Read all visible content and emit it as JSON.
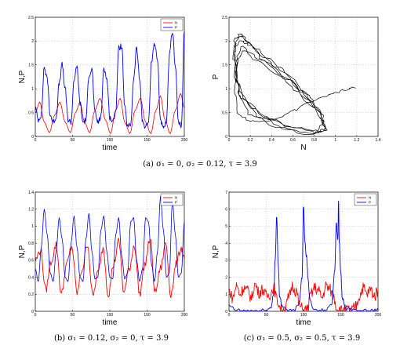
{
  "chart_data": [
    {
      "type": "line",
      "panel": "a-left",
      "xlabel": "time",
      "ylabel": "N,P",
      "xlim": [
        0,
        200
      ],
      "ylim": [
        0,
        2.5
      ],
      "xticks": [
        "0",
        "50",
        "100",
        "150",
        "200"
      ],
      "yticks": [
        "0",
        "0.5",
        "1",
        "1.5",
        "2",
        "2.5"
      ],
      "grid": true,
      "legend": "top-right",
      "series": [
        {
          "name": "N",
          "color": "#ff0000",
          "noise": 0,
          "x": [
            0,
            6,
            12,
            19,
            26,
            33,
            40,
            47,
            54,
            60,
            66,
            73,
            80,
            87,
            94,
            101,
            108,
            114,
            120,
            127,
            134,
            141,
            148,
            155,
            162,
            168,
            174,
            181,
            188,
            195,
            200
          ],
          "y": [
            0.5,
            0.72,
            0.3,
            0.08,
            0.45,
            0.72,
            0.3,
            0.08,
            0.5,
            0.72,
            0.3,
            0.08,
            0.55,
            0.8,
            0.35,
            0.06,
            0.55,
            0.8,
            0.3,
            0.06,
            0.55,
            0.8,
            0.3,
            0.06,
            0.55,
            0.85,
            0.35,
            0.06,
            0.55,
            0.9,
            0.6
          ]
        },
        {
          "name": "P",
          "color": "#0000ff",
          "noise": 0.06,
          "x": [
            0,
            4,
            8,
            12,
            16,
            20,
            24,
            28,
            32,
            36,
            40,
            44,
            48,
            52,
            56,
            60,
            64,
            68,
            72,
            76,
            80,
            84,
            88,
            92,
            96,
            100,
            104,
            108,
            112,
            116,
            120,
            124,
            128,
            132,
            136,
            140,
            144,
            148,
            152,
            156,
            160,
            164,
            168,
            172,
            176,
            180,
            184,
            188,
            192,
            196,
            200
          ],
          "y": [
            0.6,
            0.35,
            0.45,
            1.45,
            1.2,
            0.45,
            0.3,
            0.4,
            1.1,
            1.5,
            1.0,
            0.35,
            0.3,
            1.2,
            1.45,
            0.7,
            0.3,
            0.35,
            1.3,
            1.4,
            0.5,
            0.3,
            0.4,
            1.45,
            1.2,
            0.4,
            0.3,
            0.55,
            1.85,
            1.9,
            0.6,
            0.2,
            0.25,
            1.2,
            1.85,
            1.2,
            0.3,
            0.2,
            0.3,
            1.6,
            1.95,
            1.6,
            0.35,
            0.15,
            0.3,
            1.7,
            2.2,
            1.5,
            0.3,
            0.2,
            2.2
          ]
        }
      ]
    },
    {
      "type": "line",
      "panel": "a-right",
      "xlabel": "N",
      "ylabel": "P",
      "xlim": [
        0,
        1.4
      ],
      "ylim": [
        0,
        2.5
      ],
      "xticks": [
        "0",
        "0.2",
        "0.4",
        "0.6",
        "0.8",
        "1",
        "1.2",
        "1.4"
      ],
      "yticks": [
        "0",
        "0.5",
        "1",
        "1.5",
        "2",
        "2.5"
      ],
      "grid": true,
      "series": [
        {
          "name": "",
          "color": "#000000",
          "noise": 0.02,
          "x": [
            1.18,
            1.1,
            1.0,
            0.9,
            0.8,
            0.7,
            0.62,
            0.5,
            0.35,
            0.2,
            0.1,
            0.05,
            0.07,
            0.12,
            0.25,
            0.45,
            0.65,
            0.82,
            0.9,
            0.82,
            0.6,
            0.4,
            0.22,
            0.1,
            0.05,
            0.06,
            0.1,
            0.2,
            0.35,
            0.55,
            0.75,
            0.88,
            0.92,
            0.85,
            0.6,
            0.35,
            0.18,
            0.08,
            0.04,
            0.06,
            0.12,
            0.25,
            0.45,
            0.7,
            0.85,
            0.9,
            0.8,
            0.55,
            0.3,
            0.12,
            0.05,
            0.05,
            0.1,
            0.18,
            0.35,
            0.55,
            0.75,
            0.88,
            0.9,
            0.75,
            0.45,
            0.2,
            0.1,
            0.06,
            0.08,
            0.15,
            0.3,
            0.55,
            0.8
          ],
          "y": [
            1.03,
            0.98,
            0.92,
            0.85,
            0.75,
            0.68,
            0.55,
            0.42,
            0.32,
            0.32,
            0.45,
            0.9,
            1.6,
            1.9,
            1.6,
            1.3,
            0.95,
            0.6,
            0.3,
            0.12,
            0.18,
            0.35,
            0.6,
            0.95,
            1.45,
            1.95,
            2.15,
            1.9,
            1.55,
            1.2,
            0.75,
            0.35,
            0.12,
            0.08,
            0.2,
            0.4,
            0.7,
            1.1,
            1.6,
            2.05,
            2.1,
            1.85,
            1.45,
            0.95,
            0.5,
            0.15,
            0.06,
            0.15,
            0.4,
            0.8,
            1.25,
            1.75,
            2.0,
            1.95,
            1.65,
            1.3,
            0.85,
            0.45,
            0.12,
            0.05,
            0.2,
            0.45,
            0.85,
            1.3,
            1.65,
            1.8,
            1.6,
            1.2,
            0.6
          ]
        }
      ]
    },
    {
      "type": "line",
      "panel": "b",
      "xlabel": "time",
      "ylabel": "N,P",
      "xlim": [
        0,
        200
      ],
      "ylim": [
        0,
        1.4
      ],
      "xticks": [
        "0",
        "50",
        "100",
        "150",
        "200"
      ],
      "yticks": [
        "0",
        "0.2",
        "0.4",
        "0.6",
        "0.8",
        "1",
        "1.2",
        "1.4"
      ],
      "grid": true,
      "legend": "top-right",
      "series": [
        {
          "name": "N",
          "color": "#ff0000",
          "noise": 0.05,
          "x": [
            0,
            7,
            14,
            21,
            28,
            35,
            42,
            49,
            56,
            63,
            70,
            77,
            84,
            91,
            98,
            105,
            112,
            119,
            126,
            133,
            140,
            147,
            154,
            161,
            168,
            175,
            182,
            189,
            196,
            200
          ],
          "y": [
            0.6,
            0.72,
            0.25,
            0.58,
            0.78,
            0.2,
            0.55,
            0.76,
            0.22,
            0.5,
            0.8,
            0.18,
            0.45,
            0.75,
            0.2,
            0.55,
            0.82,
            0.22,
            0.5,
            0.78,
            0.2,
            0.55,
            0.85,
            0.22,
            0.5,
            0.8,
            0.2,
            0.55,
            0.75,
            0.62
          ]
        },
        {
          "name": "P",
          "color": "#0000ff",
          "noise": 0,
          "x": [
            0,
            4,
            8,
            12,
            16,
            20,
            24,
            28,
            32,
            36,
            40,
            44,
            48,
            52,
            56,
            60,
            64,
            68,
            72,
            76,
            80,
            84,
            88,
            92,
            96,
            100,
            104,
            108,
            112,
            116,
            120,
            124,
            128,
            132,
            136,
            140,
            144,
            148,
            152,
            156,
            160,
            164,
            168,
            172,
            176,
            180,
            184,
            188,
            192,
            196,
            200
          ],
          "y": [
            0.5,
            0.35,
            0.75,
            1.2,
            0.9,
            0.45,
            0.35,
            0.7,
            1.1,
            0.85,
            0.4,
            0.35,
            0.8,
            1.12,
            0.75,
            0.4,
            0.35,
            0.85,
            1.15,
            0.7,
            0.38,
            0.4,
            0.95,
            1.12,
            0.7,
            0.4,
            0.38,
            0.9,
            1.1,
            0.65,
            0.38,
            0.45,
            1.05,
            1.1,
            0.6,
            0.35,
            0.5,
            1.1,
            1.05,
            0.55,
            0.35,
            0.7,
            1.35,
            0.95,
            0.4,
            0.45,
            1.3,
            0.9,
            0.4,
            0.45,
            1.05
          ]
        }
      ]
    },
    {
      "type": "line",
      "panel": "c",
      "xlabel": "time",
      "ylabel": "N,P",
      "xlim": [
        0,
        200
      ],
      "ylim": [
        0,
        7
      ],
      "xticks": [
        "0",
        "50",
        "100",
        "150",
        "200"
      ],
      "yticks": [
        "0",
        "1",
        "2",
        "3",
        "4",
        "5",
        "6",
        "7"
      ],
      "grid": true,
      "legend": "top-right",
      "series": [
        {
          "name": "N",
          "color": "#ff0000",
          "noise": 0.35,
          "x": [
            0,
            5,
            10,
            15,
            20,
            25,
            30,
            35,
            40,
            45,
            50,
            55,
            60,
            65,
            70,
            75,
            80,
            85,
            90,
            95,
            100,
            105,
            110,
            115,
            120,
            125,
            130,
            135,
            140,
            145,
            150,
            155,
            160,
            165,
            170,
            175,
            180,
            185,
            190,
            195,
            200
          ],
          "y": [
            1.2,
            0.8,
            1.5,
            1.0,
            1.4,
            1.2,
            0.8,
            1.6,
            1.1,
            1.3,
            0.9,
            1.0,
            1.4,
            0.6,
            0.1,
            0.05,
            0.8,
            1.5,
            1.2,
            0.3,
            0.05,
            0.1,
            1.0,
            1.4,
            1.2,
            0.8,
            1.5,
            1.3,
            0.9,
            0.2,
            0.05,
            0.05,
            0.1,
            0.05,
            0.3,
            0.9,
            1.4,
            1.0,
            1.3,
            0.9,
            1.2
          ]
        },
        {
          "name": "P",
          "color": "#0000ff",
          "noise": 0.12,
          "x": [
            0,
            10,
            20,
            30,
            40,
            50,
            56,
            60,
            62,
            64,
            66,
            68,
            72,
            80,
            88,
            94,
            98,
            100,
            102,
            104,
            106,
            108,
            112,
            120,
            130,
            138,
            142,
            144,
            146,
            147,
            148,
            150,
            152,
            156,
            165,
            175,
            185,
            195,
            200
          ],
          "y": [
            0.3,
            0.05,
            0.02,
            0.02,
            0.02,
            0.05,
            0.2,
            1.0,
            3.0,
            5.6,
            2.8,
            0.8,
            0.2,
            0.05,
            0.1,
            0.5,
            2.0,
            6.2,
            4.0,
            3.2,
            2.0,
            0.8,
            0.2,
            0.05,
            0.05,
            0.5,
            2.5,
            5.2,
            4.2,
            6.4,
            4.0,
            2.2,
            0.8,
            0.2,
            0.05,
            0.02,
            0.02,
            0.05,
            0.1
          ]
        }
      ]
    }
  ],
  "legend_labels": {
    "n": "N",
    "p": "P"
  },
  "captions": {
    "a": "(a) σ₁ = 0, σ₂ = 0.12, τ = 3.9",
    "b": "(b) σ₁ = 0.12, σ₂ = 0, τ = 3.9",
    "c": "(c) σ₁ = 0.5, σ₂ = 0.5, τ = 3.9"
  }
}
